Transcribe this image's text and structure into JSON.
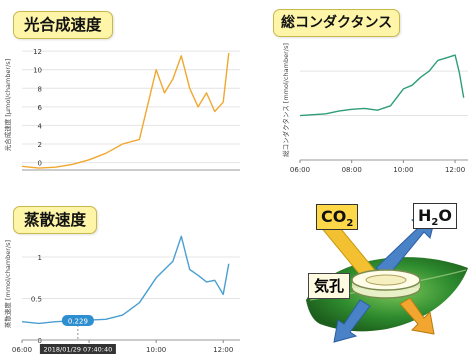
{
  "chart_data": [
    {
      "id": "photosynthesis",
      "type": "line",
      "title": "光合成速度",
      "ylabel": "光合成速度 [µmol/chamber/s]",
      "color": "#f0a830",
      "ylim": [
        -0.8,
        13.2
      ],
      "yticks": [
        "0",
        "2",
        "4",
        "6",
        "8",
        "10",
        "12"
      ],
      "x": [
        "06:00",
        "06:30",
        "07:00",
        "07:30",
        "08:00",
        "08:30",
        "09:00",
        "09:30",
        "10:00",
        "10:15",
        "10:30",
        "10:45",
        "11:00",
        "11:15",
        "11:30",
        "11:45",
        "12:00",
        "12:10"
      ],
      "values": [
        -0.4,
        -0.6,
        -0.5,
        -0.2,
        0.3,
        1.0,
        2.0,
        2.5,
        10.0,
        7.5,
        9.0,
        11.5,
        8.0,
        6.0,
        7.5,
        5.5,
        6.5,
        11.8
      ]
    },
    {
      "id": "conductance",
      "type": "line",
      "title": "総コンダクタンス",
      "ylabel": "総コンダクタンス [mmol/chamber/s]",
      "color": "#2e9e78",
      "xticks": [
        "06:00",
        "08:00",
        "10:00",
        "12:00"
      ],
      "x": [
        "06:00",
        "06:30",
        "07:00",
        "07:30",
        "08:00",
        "08:30",
        "09:00",
        "09:30",
        "10:00",
        "10:20",
        "10:40",
        "11:00",
        "11:20",
        "11:40",
        "12:00",
        "12:10",
        "12:20"
      ],
      "values": [
        50,
        51,
        52,
        55,
        57,
        58,
        56,
        61,
        80,
        84,
        93,
        100,
        112,
        115,
        118,
        98,
        70
      ]
    },
    {
      "id": "transpiration",
      "type": "line",
      "title": "蒸散速度",
      "ylabel": "蒸散速度 [mmol/chamber/s]",
      "color": "#4a9fd2",
      "ylim": [
        0,
        1.35
      ],
      "yticks": [
        "0",
        "0.5",
        "1"
      ],
      "xticks": [
        "06:00",
        "08:00",
        "10:00",
        "12:00"
      ],
      "x": [
        "06:00",
        "06:30",
        "07:00",
        "07:30",
        "08:00",
        "08:30",
        "09:00",
        "09:30",
        "10:00",
        "10:15",
        "10:30",
        "10:45",
        "11:00",
        "11:15",
        "11:30",
        "11:45",
        "12:00",
        "12:10"
      ],
      "values": [
        0.22,
        0.2,
        0.22,
        0.23,
        0.24,
        0.25,
        0.3,
        0.45,
        0.75,
        0.85,
        0.95,
        1.25,
        0.85,
        0.78,
        0.7,
        0.72,
        0.55,
        0.92
      ],
      "tooltip": {
        "value": "0.229",
        "label": "2018/01/29 07:40:40",
        "x": "07:40"
      }
    }
  ],
  "diagram": {
    "co2_label": "CO",
    "co2_sub": "2",
    "h2o_label_h": "H",
    "h2o_sub": "2",
    "h2o_label_o": "O",
    "stoma_label": "気孔",
    "colors": {
      "co2_arrow": "#f2c030",
      "h2o_arrow": "#4a82c8",
      "leaf": "#2e8b2e"
    }
  },
  "titles": {
    "photosynthesis": "光合成速度",
    "conductance": "総コンダクタンス",
    "transpiration": "蒸散速度"
  }
}
